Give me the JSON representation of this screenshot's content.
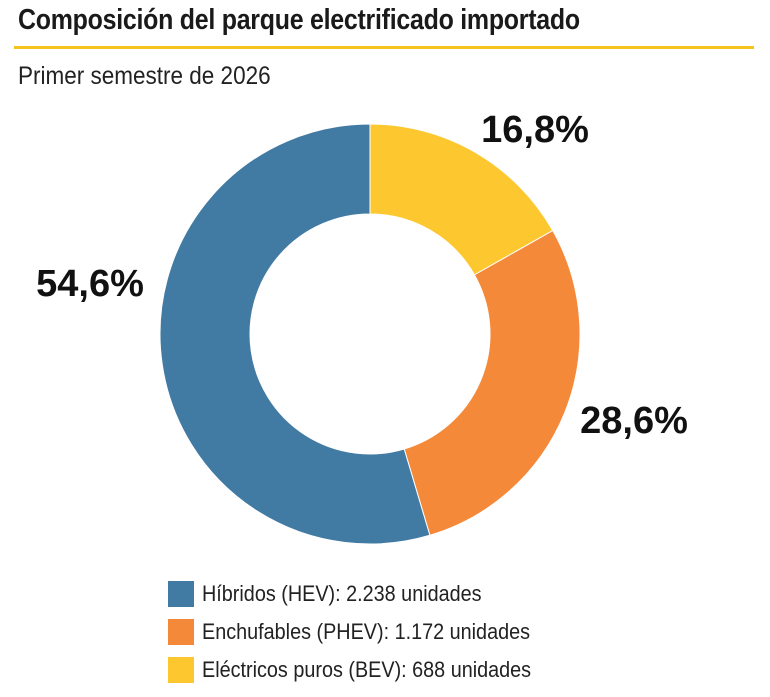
{
  "title": "Composición del parque electrificado importado",
  "subtitle": "Primer semestre de 2026",
  "chart_data": {
    "type": "pie",
    "title": "Composición del parque electrificado importado",
    "subtitle": "Primer semestre de 2026",
    "series": [
      {
        "name": "Híbridos (HEV)",
        "value": 54.6,
        "label": "54,6%",
        "units": 2238,
        "color": "#417BA3"
      },
      {
        "name": "Enchufables (PHEV)",
        "value": 28.6,
        "label": "28,6%",
        "units": 1172,
        "color": "#F5893A"
      },
      {
        "name": "Eléctricos puros (BEV)",
        "value": 16.8,
        "label": "16,8%",
        "units": 688,
        "color": "#FDC82F"
      }
    ],
    "legend": {
      "placement": "bottom",
      "items": [
        "Híbridos (HEV): 2.238 unidades",
        "Enchufables (PHEV): 1.172 unidades",
        "Eléctricos puros (BEV): 688 unidades"
      ]
    }
  },
  "accent_color": "#F4C31C"
}
